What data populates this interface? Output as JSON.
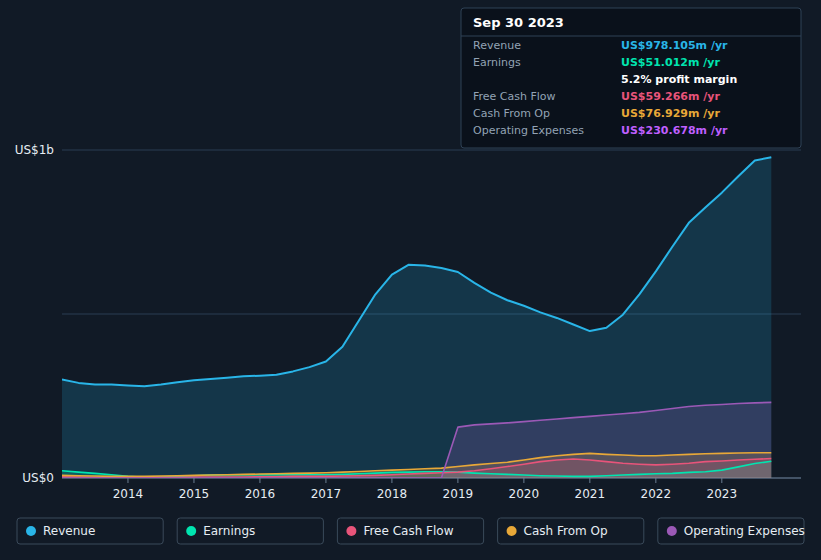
{
  "chart_data": {
    "type": "area",
    "x": [
      2013.0,
      2013.25,
      2013.5,
      2013.75,
      2014.0,
      2014.25,
      2014.5,
      2014.75,
      2015.0,
      2015.25,
      2015.5,
      2015.75,
      2016.0,
      2016.25,
      2016.5,
      2016.75,
      2017.0,
      2017.25,
      2017.5,
      2017.75,
      2018.0,
      2018.25,
      2018.5,
      2018.75,
      2019.0,
      2019.25,
      2019.5,
      2019.75,
      2020.0,
      2020.25,
      2020.5,
      2020.75,
      2021.0,
      2021.25,
      2021.5,
      2021.75,
      2022.0,
      2022.25,
      2022.5,
      2022.75,
      2023.0,
      2023.25,
      2023.5,
      2023.75
    ],
    "series": [
      {
        "name": "Revenue",
        "color": "#29b5e8",
        "values": [
          300,
          290,
          285,
          285,
          282,
          280,
          285,
          292,
          298,
          302,
          306,
          310,
          312,
          315,
          325,
          338,
          355,
          400,
          480,
          560,
          620,
          650,
          648,
          640,
          628,
          595,
          565,
          542,
          525,
          505,
          488,
          468,
          448,
          458,
          498,
          560,
          630,
          705,
          778,
          825,
          870,
          920,
          968,
          978
        ]
      },
      {
        "name": "Earnings",
        "color": "#00e5b0",
        "values": [
          22,
          18,
          14,
          10,
          5,
          2,
          3,
          5,
          7,
          9,
          10,
          10,
          10,
          10,
          10,
          10,
          10,
          11,
          13,
          15,
          17,
          18,
          19,
          19,
          18,
          15,
          13,
          11,
          9,
          7,
          6,
          5,
          5,
          7,
          9,
          11,
          13,
          14,
          17,
          19,
          24,
          34,
          44,
          51
        ]
      },
      {
        "name": "Free Cash Flow",
        "color": "#e8547a",
        "values": [
          4,
          3,
          2,
          2,
          2,
          2,
          2,
          2,
          3,
          3,
          3,
          3,
          4,
          4,
          5,
          5,
          5,
          6,
          7,
          8,
          10,
          12,
          14,
          16,
          18,
          22,
          28,
          35,
          42,
          50,
          55,
          58,
          55,
          50,
          45,
          42,
          40,
          42,
          45,
          50,
          52,
          55,
          57,
          59.3
        ]
      },
      {
        "name": "Cash From Op",
        "color": "#e8a838",
        "values": [
          8,
          7,
          6,
          5,
          5,
          5,
          6,
          7,
          8,
          9,
          10,
          11,
          12,
          13,
          14,
          15,
          16,
          18,
          20,
          22,
          24,
          26,
          28,
          30,
          35,
          40,
          44,
          48,
          55,
          62,
          68,
          72,
          75,
          72,
          70,
          68,
          68,
          70,
          72,
          74,
          75,
          76,
          77,
          76.9
        ]
      },
      {
        "name": "Operating Expenses",
        "color": "#9b59b6",
        "values": [
          0,
          0,
          0,
          0,
          0,
          0,
          0,
          0,
          0,
          0,
          0,
          0,
          0,
          0,
          0,
          0,
          0,
          0,
          0,
          0,
          0,
          0,
          0,
          0,
          155,
          162,
          165,
          168,
          172,
          176,
          180,
          184,
          188,
          192,
          196,
          200,
          206,
          212,
          218,
          222,
          224,
          227,
          229,
          230.7
        ]
      }
    ],
    "xlim": [
      2013.0,
      2024.2
    ],
    "xticks": [
      2014,
      2015,
      2016,
      2017,
      2018,
      2019,
      2020,
      2021,
      2022,
      2023
    ],
    "ylim": [
      0,
      1000
    ],
    "yticks": [
      {
        "value": 0,
        "label": "US$0"
      },
      {
        "value": 500,
        "label": null
      },
      {
        "value": 1000,
        "label": "US$1b"
      }
    ],
    "grid": true,
    "legend": "bottom",
    "info_box": {
      "title": "Sep 30 2023",
      "rows": [
        {
          "label": "Revenue",
          "value": "US$978.105m /yr",
          "color": "#29b5e8"
        },
        {
          "label": "Earnings",
          "value": "US$51.012m /yr",
          "color": "#00e5b0"
        },
        {
          "value": "5.2% profit margin",
          "color": "#ffffff"
        },
        {
          "label": "Free Cash Flow",
          "value": "US$59.266m /yr",
          "color": "#e8547a"
        },
        {
          "label": "Cash From Op",
          "value": "US$76.929m /yr",
          "color": "#e8a838"
        },
        {
          "label": "Operating Expenses",
          "value": "US$230.678m /yr",
          "color": "#bf5fff"
        }
      ]
    }
  }
}
